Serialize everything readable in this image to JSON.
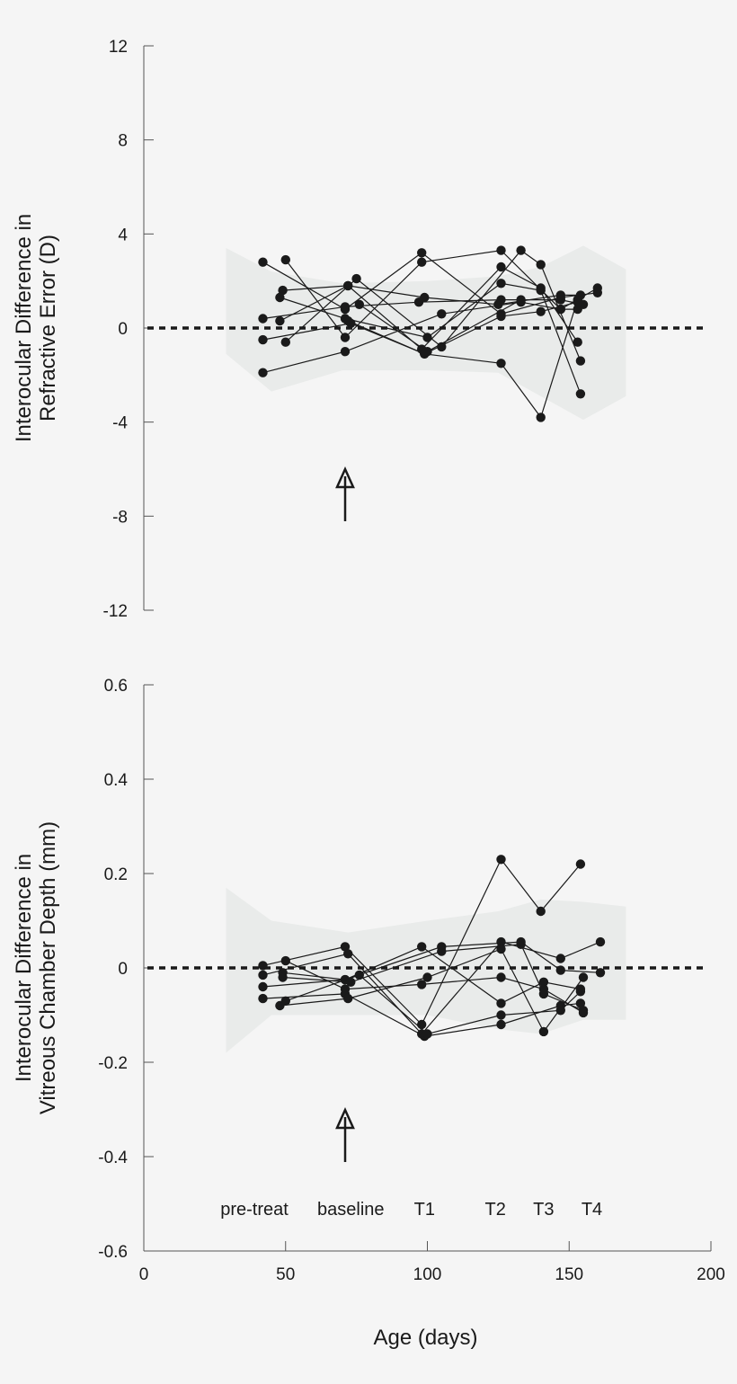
{
  "chart_data": [
    {
      "type": "line",
      "ylabel": [
        "Interocular Difference in",
        "Refractive Error (D)"
      ],
      "ylim": [
        -12,
        12
      ],
      "yticks": [
        "12",
        "8",
        "4",
        "0",
        "-4",
        "-8",
        "-12"
      ],
      "yticks_values": [
        12,
        8,
        4,
        0,
        -4,
        -8,
        -12
      ],
      "xlim": [
        0,
        200
      ],
      "band": {
        "upper": [
          [
            29,
            3.4
          ],
          [
            45,
            2.4
          ],
          [
            70,
            1.9
          ],
          [
            100,
            2.0
          ],
          [
            125,
            2.2
          ],
          [
            140,
            2.6
          ],
          [
            155,
            3.5
          ],
          [
            170,
            2.5
          ]
        ],
        "lower": [
          [
            29,
            -1.1
          ],
          [
            45,
            -2.7
          ],
          [
            70,
            -1.8
          ],
          [
            100,
            -1.8
          ],
          [
            125,
            -1.9
          ],
          [
            140,
            -2.9
          ],
          [
            155,
            -3.9
          ],
          [
            170,
            -2.9
          ]
        ]
      },
      "reference_line": 0,
      "arrow_x": 71,
      "series": [
        {
          "points": [
            [
              42,
              2.8
            ],
            [
              71,
              0.8
            ],
            [
              98,
              3.2
            ],
            [
              126,
              0.6
            ],
            [
              147,
              1.3
            ],
            [
              160,
              1.5
            ]
          ]
        },
        {
          "points": [
            [
              50,
              2.9
            ],
            [
              71,
              -0.4
            ],
            [
              98,
              2.8
            ],
            [
              126,
              3.3
            ],
            [
              147,
              0.8
            ],
            [
              160,
              1.7
            ]
          ]
        },
        {
          "points": [
            [
              48,
              1.3
            ],
            [
              71,
              0.4
            ],
            [
              100,
              -0.4
            ],
            [
              126,
              1.9
            ],
            [
              140,
              1.6
            ],
            [
              154,
              -2.8
            ]
          ]
        },
        {
          "points": [
            [
              49,
              1.6
            ],
            [
              72,
              1.8
            ],
            [
              98,
              -0.9
            ],
            [
              126,
              2.6
            ],
            [
              140,
              1.7
            ],
            [
              153,
              -0.6
            ]
          ]
        },
        {
          "points": [
            [
              42,
              0.4
            ],
            [
              71,
              0.9
            ],
            [
              97,
              1.1
            ],
            [
              126,
              1.2
            ],
            [
              147,
              1.2
            ],
            [
              155,
              1.0
            ]
          ]
        },
        {
          "points": [
            [
              48,
              0.3
            ],
            [
              72,
              1.8
            ],
            [
              99,
              1.3
            ],
            [
              125,
              1.0
            ],
            [
              147,
              1.4
            ],
            [
              154,
              1.4
            ]
          ]
        },
        {
          "points": [
            [
              42,
              -0.5
            ],
            [
              73,
              0.2
            ],
            [
              99,
              -1.1
            ],
            [
              126,
              -1.5
            ],
            [
              140,
              -3.8
            ],
            [
              153,
              1.2
            ]
          ]
        },
        {
          "points": [
            [
              50,
              -0.6
            ],
            [
              75,
              2.1
            ],
            [
              105,
              -0.8
            ],
            [
              133,
              3.3
            ],
            [
              140,
              2.7
            ],
            [
              154,
              -1.4
            ]
          ]
        },
        {
          "points": [
            [
              42,
              -1.9
            ],
            [
              71,
              -1.0
            ],
            [
              105,
              0.6
            ],
            [
              133,
              1.1
            ],
            [
              147,
              0.8
            ],
            [
              153,
              0.8
            ]
          ]
        },
        {
          "points": [
            [
              72,
              0.3
            ],
            [
              99,
              -1.1
            ],
            [
              126,
              0.5
            ],
            [
              140,
              0.7
            ],
            [
              153,
              1.1
            ]
          ]
        },
        {
          "points": [
            [
              76,
              1.0
            ],
            [
              100,
              -1.0
            ],
            [
              133,
              1.2
            ]
          ]
        }
      ]
    },
    {
      "type": "line",
      "ylabel": [
        "Interocular Difference in",
        "Vitreous Chamber Depth (mm)"
      ],
      "xlabel": "Age (days)",
      "ylim": [
        -0.6,
        0.6
      ],
      "yticks": [
        "0.6",
        "0.4",
        "0.2",
        "0",
        "-0.2",
        "-0.4",
        "-0.6"
      ],
      "yticks_values": [
        0.6,
        0.4,
        0.2,
        0,
        -0.2,
        -0.4,
        -0.6
      ],
      "xlim": [
        0,
        200
      ],
      "xticks": [
        "0",
        "50",
        "100",
        "150",
        "200"
      ],
      "xticks_values": [
        0,
        50,
        100,
        150,
        200
      ],
      "band": {
        "upper": [
          [
            29,
            0.17
          ],
          [
            45,
            0.1
          ],
          [
            72,
            0.075
          ],
          [
            100,
            0.1
          ],
          [
            125,
            0.12
          ],
          [
            140,
            0.145
          ],
          [
            155,
            0.14
          ],
          [
            170,
            0.13
          ]
        ],
        "lower": [
          [
            29,
            -0.18
          ],
          [
            45,
            -0.1
          ],
          [
            72,
            -0.1
          ],
          [
            100,
            -0.1
          ],
          [
            125,
            -0.13
          ],
          [
            140,
            -0.14
          ],
          [
            155,
            -0.11
          ],
          [
            170,
            -0.11
          ]
        ]
      },
      "reference_line": 0,
      "arrow_x": 71,
      "series": [
        {
          "points": [
            [
              42,
              0.005
            ],
            [
              71,
              0.045
            ],
            [
              98,
              -0.12
            ],
            [
              126,
              0.23
            ],
            [
              140,
              0.12
            ],
            [
              154,
              0.22
            ]
          ]
        },
        {
          "points": [
            [
              42,
              -0.015
            ],
            [
              72,
              0.03
            ],
            [
              98,
              -0.14
            ],
            [
              126,
              0.055
            ],
            [
              147,
              0.02
            ],
            [
              161,
              0.055
            ]
          ]
        },
        {
          "points": [
            [
              42,
              -0.04
            ],
            [
              71,
              -0.025
            ],
            [
              98,
              0.045
            ],
            [
              126,
              -0.075
            ],
            [
              141,
              -0.03
            ],
            [
              154,
              -0.045
            ]
          ]
        },
        {
          "points": [
            [
              42,
              -0.065
            ],
            [
              71,
              -0.055
            ],
            [
              99,
              -0.145
            ],
            [
              126,
              -0.12
            ],
            [
              147,
              -0.08
            ],
            [
              154,
              -0.075
            ]
          ]
        },
        {
          "points": [
            [
              48,
              -0.08
            ],
            [
              72,
              -0.065
            ],
            [
              100,
              -0.02
            ],
            [
              126,
              0.04
            ],
            [
              141,
              -0.135
            ],
            [
              155,
              -0.02
            ]
          ]
        },
        {
          "points": [
            [
              49,
              -0.01
            ],
            [
              71,
              -0.025
            ],
            [
              105,
              0.045
            ],
            [
              133,
              0.055
            ],
            [
              147,
              -0.005
            ],
            [
              161,
              -0.01
            ]
          ]
        },
        {
          "points": [
            [
              49,
              -0.02
            ],
            [
              73,
              -0.03
            ],
            [
              105,
              0.035
            ],
            [
              133,
              0.05
            ],
            [
              141,
              -0.055
            ],
            [
              155,
              -0.09
            ]
          ]
        },
        {
          "points": [
            [
              50,
              0.015
            ],
            [
              71,
              -0.045
            ],
            [
              98,
              -0.035
            ],
            [
              126,
              -0.02
            ],
            [
              141,
              -0.045
            ],
            [
              155,
              -0.095
            ]
          ]
        },
        {
          "points": [
            [
              50,
              -0.07
            ],
            [
              76,
              -0.015
            ],
            [
              100,
              -0.14
            ],
            [
              126,
              -0.1
            ],
            [
              147,
              -0.09
            ],
            [
              154,
              -0.05
            ]
          ]
        }
      ],
      "phase_labels": [
        {
          "text": "pre-treat",
          "x": 39
        },
        {
          "text": "baseline",
          "x": 73
        },
        {
          "text": "T1",
          "x": 99
        },
        {
          "text": "T2",
          "x": 124
        },
        {
          "text": "T3",
          "x": 141
        },
        {
          "text": "T4",
          "x": 158
        }
      ]
    }
  ]
}
